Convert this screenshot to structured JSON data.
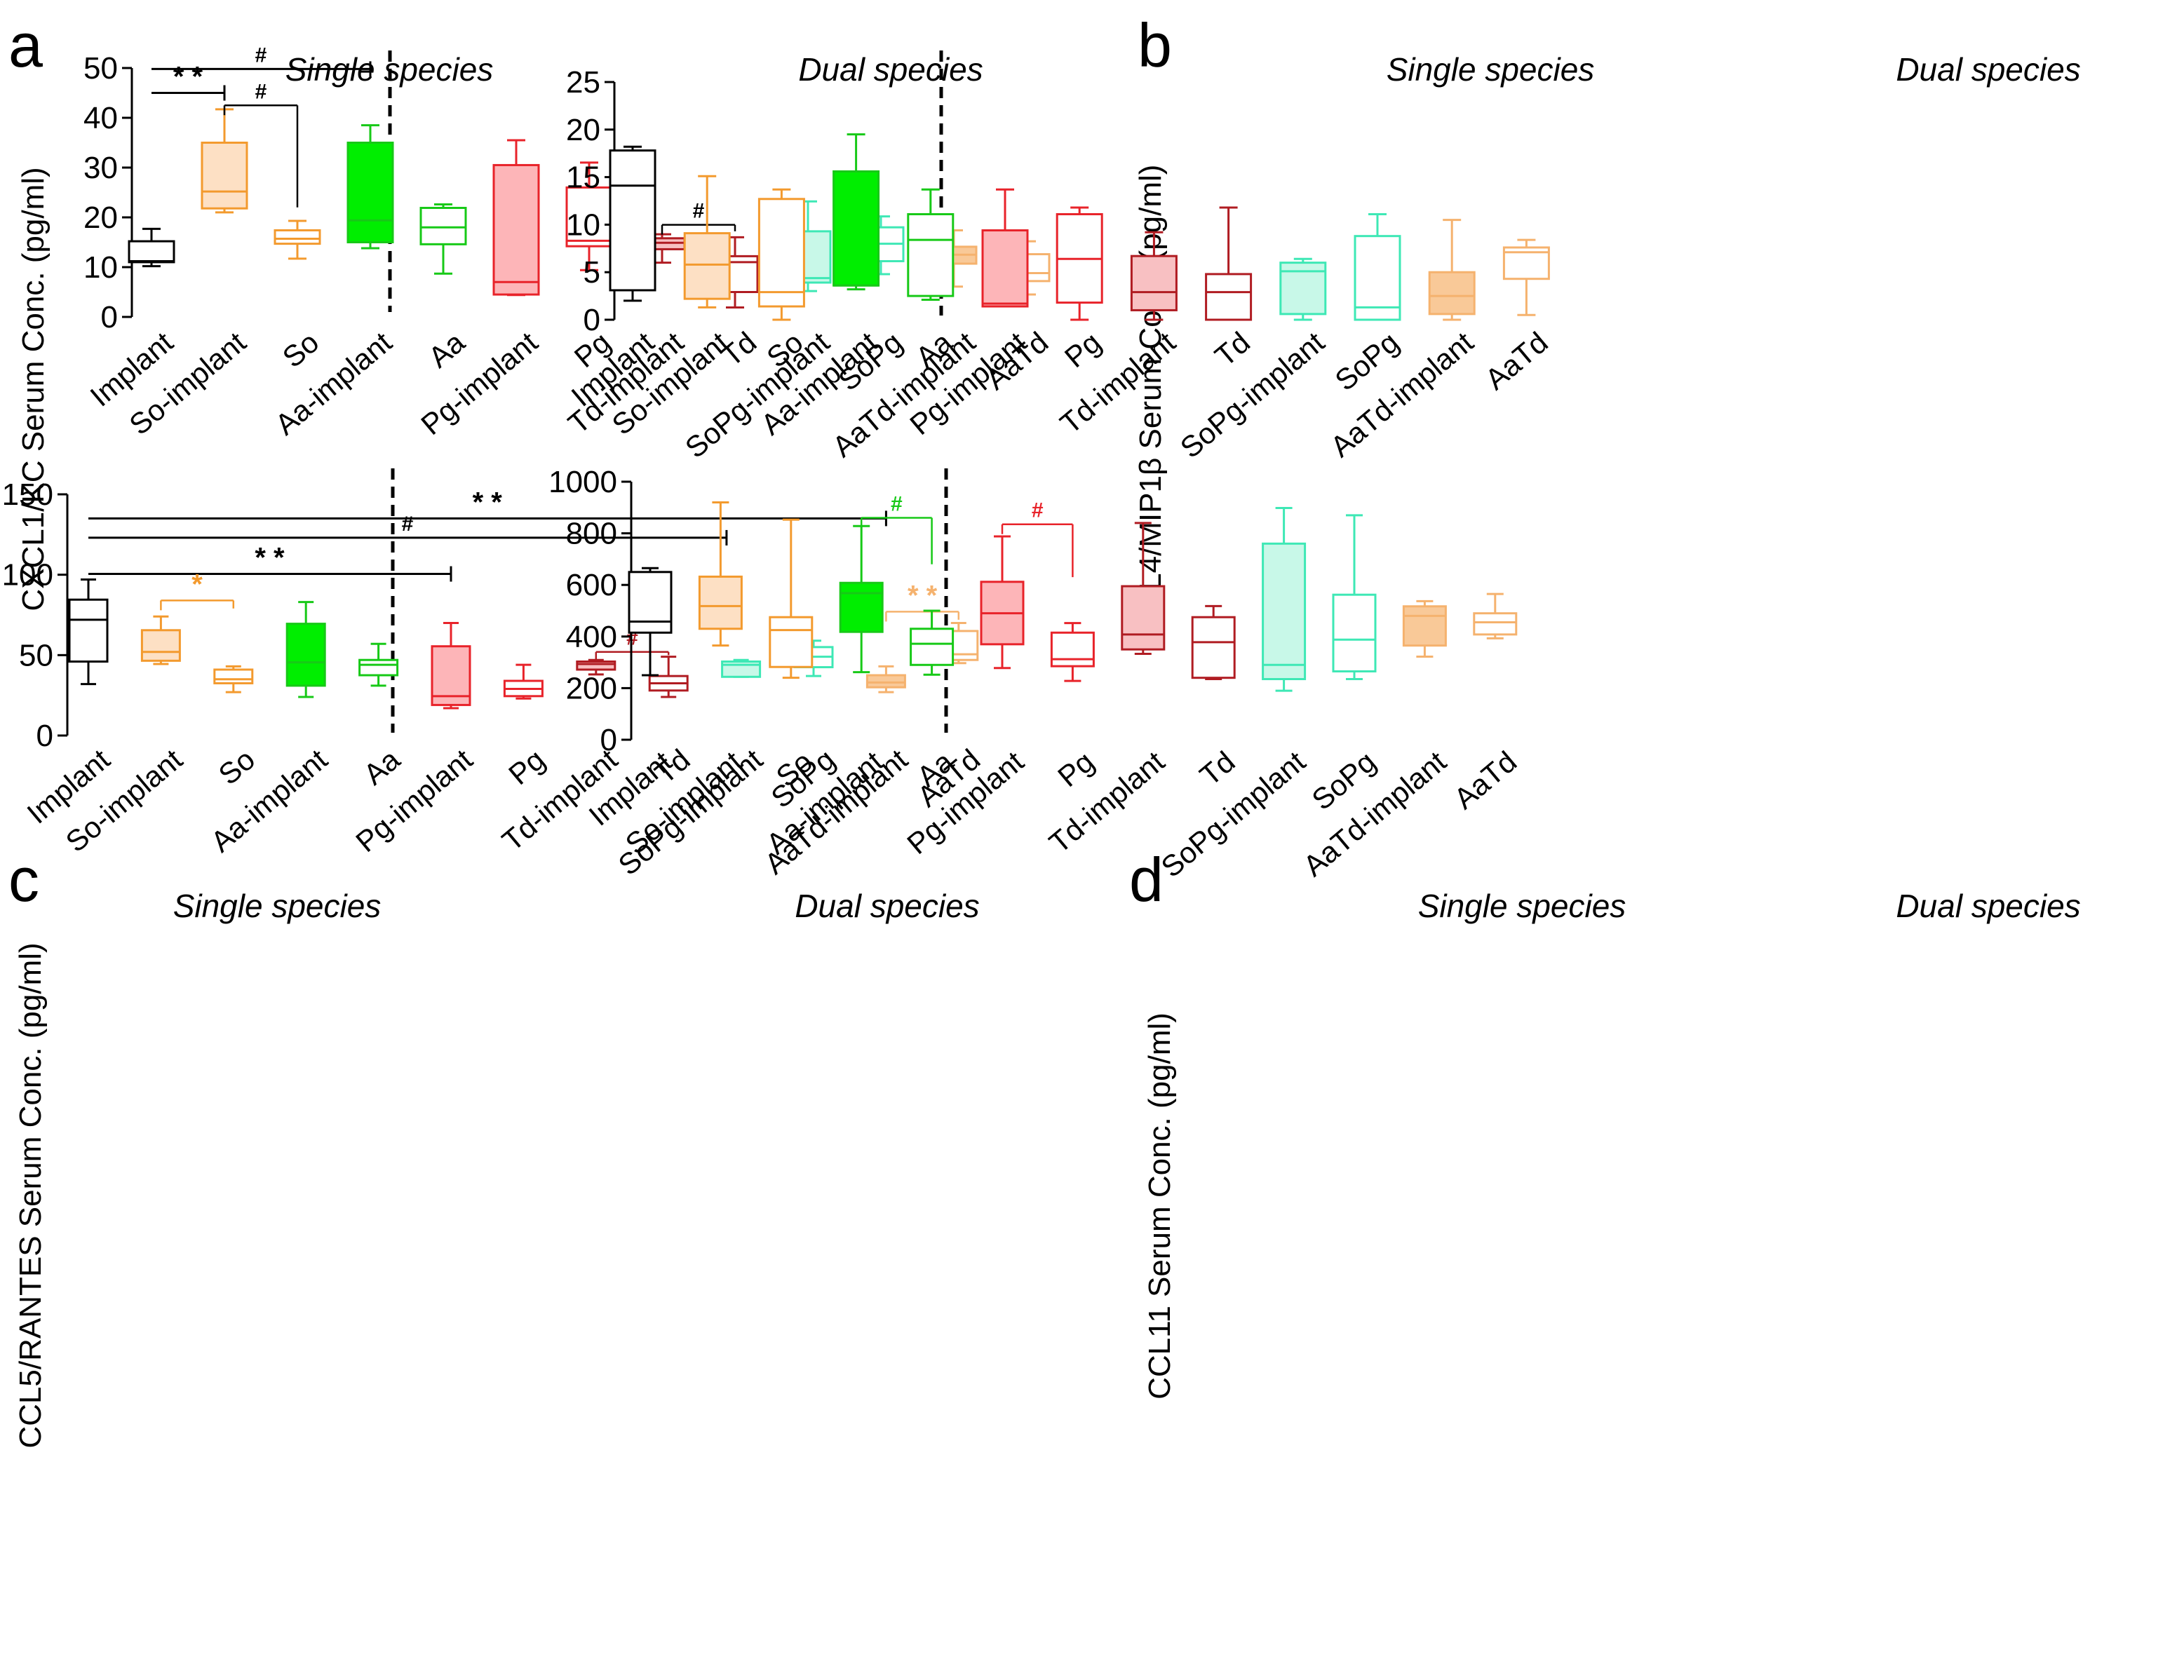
{
  "categories": [
    "Implant",
    "So-implant",
    "So",
    "Aa-implant",
    "Aa",
    "Pg-implant",
    "Pg",
    "Td-implant",
    "Td",
    "SoPg-implant",
    "SoPg",
    "AaTd-implant",
    "AaTd"
  ],
  "groups": {
    "single": "Single species",
    "dual": "Dual species"
  },
  "box_styles": [
    {
      "stroke": "#000000",
      "fill": "#ffffff"
    },
    {
      "stroke": "#f39a2e",
      "fill": "#fde0c4"
    },
    {
      "stroke": "#f39a2e",
      "fill": "#ffffff"
    },
    {
      "stroke": "#17c917",
      "fill": "#00ee00"
    },
    {
      "stroke": "#17c917",
      "fill": "#ffffff"
    },
    {
      "stroke": "#e8232a",
      "fill": "#fdb5b8"
    },
    {
      "stroke": "#e8232a",
      "fill": "#ffffff"
    },
    {
      "stroke": "#b01c22",
      "fill": "#f8c0c2"
    },
    {
      "stroke": "#b01c22",
      "fill": "#ffffff"
    },
    {
      "stroke": "#3ee8b5",
      "fill": "#c8f8e8"
    },
    {
      "stroke": "#3ee8b5",
      "fill": "#ffffff"
    },
    {
      "stroke": "#f5b26e",
      "fill": "#f9c998"
    },
    {
      "stroke": "#f5b26e",
      "fill": "#ffffff"
    }
  ],
  "chart_data": [
    {
      "panel": "a",
      "type": "box",
      "ylabel": "CXCL1/KC Serum Conc. (pg/ml)",
      "ylim": [
        0,
        50
      ],
      "yticks": [
        0,
        10,
        20,
        30,
        40,
        50
      ],
      "boxes": [
        {
          "min": 10.2,
          "q1": 11.0,
          "median": 11.2,
          "q3": 15.2,
          "max": 17.7
        },
        {
          "min": 21.0,
          "q1": 21.8,
          "median": 25.2,
          "q3": 35.0,
          "max": 41.7
        },
        {
          "min": 11.7,
          "q1": 14.7,
          "median": 15.7,
          "q3": 17.4,
          "max": 19.3
        },
        {
          "min": 13.8,
          "q1": 15.0,
          "median": 19.4,
          "q3": 35.0,
          "max": 38.5
        },
        {
          "min": 8.7,
          "q1": 14.6,
          "median": 18.0,
          "q3": 21.9,
          "max": 22.6
        },
        {
          "min": 4.4,
          "q1": 4.5,
          "median": 7.0,
          "q3": 30.5,
          "max": 35.5
        },
        {
          "min": 9.4,
          "q1": 14.2,
          "median": 15.3,
          "q3": 26.0,
          "max": 31.0
        },
        {
          "min": 10.9,
          "q1": 13.6,
          "median": 14.9,
          "q3": 15.8,
          "max": 16.6
        },
        {
          "min": 1.9,
          "q1": 5.0,
          "median": 11.0,
          "q3": 12.2,
          "max": 16.0
        },
        {
          "min": 5.2,
          "q1": 6.9,
          "median": 7.8,
          "q3": 17.2,
          "max": 23.2
        },
        {
          "min": 8.6,
          "q1": 11.2,
          "median": 14.7,
          "q3": 18.0,
          "max": 20.2
        },
        {
          "min": 6.1,
          "q1": 10.7,
          "median": 12.5,
          "q3": 14.1,
          "max": 17.4
        },
        {
          "min": 4.5,
          "q1": 7.2,
          "median": 8.8,
          "q3": 12.6,
          "max": 15.2
        }
      ],
      "annotations": [
        {
          "type": "bar",
          "from": 0,
          "to": 1,
          "y": 45.0,
          "label": "* *",
          "color": "#000000",
          "cap": "end"
        },
        {
          "type": "bar",
          "from": 0,
          "to": 3,
          "y": 49.8,
          "label": "#",
          "color": "#000000",
          "cap": "end"
        },
        {
          "type": "bracket",
          "from": 1,
          "to": 2,
          "y": 42.5,
          "drop_to": 22.0,
          "label": "#",
          "color": "#000000"
        },
        {
          "type": "bracket",
          "from": 7,
          "to": 8,
          "y": 18.5,
          "drop_to": 17.2,
          "label": "#",
          "color": "#000000"
        }
      ]
    },
    {
      "panel": "b",
      "type": "box",
      "ylabel": "CCL4/MIP1β Serum Conc. (pg/ml)",
      "ylim": [
        0,
        25
      ],
      "yticks": [
        0,
        5,
        10,
        15,
        20,
        25
      ],
      "boxes": [
        {
          "min": 2.0,
          "q1": 3.1,
          "median": 14.1,
          "q3": 17.8,
          "max": 18.2
        },
        {
          "min": 1.3,
          "q1": 2.2,
          "median": 5.8,
          "q3": 9.1,
          "max": 15.1
        },
        {
          "min": 0.0,
          "q1": 1.4,
          "median": 2.9,
          "q3": 12.7,
          "max": 13.7
        },
        {
          "min": 3.2,
          "q1": 3.6,
          "median": 3.6,
          "q3": 15.6,
          "max": 19.5
        },
        {
          "min": 2.1,
          "q1": 2.5,
          "median": 8.4,
          "q3": 11.1,
          "max": 13.7
        },
        {
          "min": 1.4,
          "q1": 1.4,
          "median": 1.7,
          "q3": 9.4,
          "max": 13.7
        },
        {
          "min": 0.0,
          "q1": 1.8,
          "median": 6.4,
          "q3": 11.1,
          "max": 11.8
        },
        {
          "min": 0.0,
          "q1": 1.0,
          "median": 2.9,
          "q3": 6.7,
          "max": 9.2
        },
        {
          "min": 0.0,
          "q1": 0.0,
          "median": 2.9,
          "q3": 4.8,
          "max": 11.8
        },
        {
          "min": 0.0,
          "q1": 0.6,
          "median": 5.1,
          "q3": 6.0,
          "max": 6.4
        },
        {
          "min": 0.0,
          "q1": 0.0,
          "median": 1.3,
          "q3": 8.8,
          "max": 11.1
        },
        {
          "min": 0.0,
          "q1": 0.6,
          "median": 2.5,
          "q3": 5.0,
          "max": 10.5
        },
        {
          "min": 0.5,
          "q1": 4.3,
          "median": 7.1,
          "q3": 7.6,
          "max": 8.4
        }
      ],
      "annotations": []
    },
    {
      "panel": "c",
      "type": "box",
      "ylabel": "CCL5/RANTES Serum Conc. (pg/ml)",
      "ylim": [
        0,
        150
      ],
      "yticks": [
        0,
        50,
        100,
        150
      ],
      "boxes": [
        {
          "min": 32.0,
          "q1": 46.0,
          "median": 72.0,
          "q3": 84.5,
          "max": 97.0
        },
        {
          "min": 44.5,
          "q1": 46.5,
          "median": 52.0,
          "q3": 65.5,
          "max": 74.0
        },
        {
          "min": 27.0,
          "q1": 32.5,
          "median": 35.0,
          "q3": 41.0,
          "max": 43.0
        },
        {
          "min": 24.0,
          "q1": 31.0,
          "median": 45.5,
          "q3": 69.5,
          "max": 83.0
        },
        {
          "min": 31.0,
          "q1": 37.5,
          "median": 44.0,
          "q3": 47.0,
          "max": 57.0
        },
        {
          "min": 17.0,
          "q1": 19.0,
          "median": 24.5,
          "q3": 55.5,
          "max": 70.0
        },
        {
          "min": 23.0,
          "q1": 24.5,
          "median": 29.0,
          "q3": 34.0,
          "max": 44.0
        },
        {
          "min": 38.0,
          "q1": 41.0,
          "median": 44.5,
          "q3": 46.0,
          "max": 47.0
        },
        {
          "min": 24.0,
          "q1": 28.0,
          "median": 32.5,
          "q3": 37.0,
          "max": 49.0
        },
        {
          "min": 36.5,
          "q1": 36.5,
          "median": 44.0,
          "q3": 46.0,
          "max": 47.0
        },
        {
          "min": 37.0,
          "q1": 42.5,
          "median": 49.0,
          "q3": 55.0,
          "max": 59.0
        },
        {
          "min": 27.0,
          "q1": 30.0,
          "median": 33.0,
          "q3": 37.5,
          "max": 43.0
        },
        {
          "min": 45.0,
          "q1": 47.0,
          "median": 50.5,
          "q3": 65.0,
          "max": 70.0
        }
      ],
      "annotations": [
        {
          "type": "bar",
          "from": 0,
          "to": 5,
          "y": 100.5,
          "label": "* *",
          "color": "#000000",
          "cap": "end"
        },
        {
          "type": "bar",
          "from": 0,
          "to": 8.8,
          "y": 123.0,
          "label": "#",
          "color": "#000000",
          "cap": "end"
        },
        {
          "type": "bar",
          "from": 0,
          "to": 11,
          "y": 135.0,
          "label": "* *",
          "color": "#000000",
          "cap": "end"
        },
        {
          "type": "bracket",
          "from": 1,
          "to": 2,
          "y": 84.0,
          "drop_to": 79.0,
          "label": "*",
          "color": "#f39a2e"
        },
        {
          "type": "bracket",
          "from": 7,
          "to": 8,
          "y": 52.0,
          "drop_to": 50.0,
          "label": "#",
          "color": "#b01c22"
        },
        {
          "type": "bracket",
          "from": 11,
          "to": 12,
          "y": 77.0,
          "drop_to": 72.0,
          "label": "* *",
          "color": "#f5b26e"
        }
      ]
    },
    {
      "panel": "d",
      "type": "box",
      "ylabel": "CCL11 Serum Conc. (pg/ml)",
      "ylim": [
        0,
        1000
      ],
      "yticks": [
        0,
        200,
        400,
        600,
        800,
        1000
      ],
      "boxes": [
        {
          "min": 250,
          "q1": 415,
          "median": 458,
          "q3": 650,
          "max": 665
        },
        {
          "min": 365,
          "q1": 430,
          "median": 518,
          "q3": 632,
          "max": 920
        },
        {
          "min": 240,
          "q1": 282,
          "median": 425,
          "q3": 475,
          "max": 853
        },
        {
          "min": 262,
          "q1": 418,
          "median": 568,
          "q3": 608,
          "max": 828
        },
        {
          "min": 252,
          "q1": 290,
          "median": 372,
          "q3": 430,
          "max": 500
        },
        {
          "min": 278,
          "q1": 370,
          "median": 490,
          "q3": 612,
          "max": 788
        },
        {
          "min": 228,
          "q1": 285,
          "median": 312,
          "q3": 415,
          "max": 452
        },
        {
          "min": 333,
          "q1": 350,
          "median": 408,
          "q3": 595,
          "max": 840
        },
        {
          "min": 235,
          "q1": 240,
          "median": 378,
          "q3": 475,
          "max": 518
        },
        {
          "min": 190,
          "q1": 235,
          "median": 290,
          "q3": 760,
          "max": 898
        },
        {
          "min": 235,
          "q1": 265,
          "median": 388,
          "q3": 562,
          "max": 870
        },
        {
          "min": 322,
          "q1": 365,
          "median": 480,
          "q3": 517,
          "max": 537
        },
        {
          "min": 393,
          "q1": 408,
          "median": 455,
          "q3": 490,
          "max": 565
        }
      ],
      "annotations": [
        {
          "type": "bracket",
          "from": 3,
          "to": 4,
          "y": 860,
          "drop_to": 680,
          "label": "#",
          "color": "#17c917"
        },
        {
          "type": "bracket",
          "from": 5,
          "to": 6,
          "y": 835,
          "drop_to": 630,
          "label": "#",
          "color": "#e8232a"
        }
      ]
    }
  ]
}
